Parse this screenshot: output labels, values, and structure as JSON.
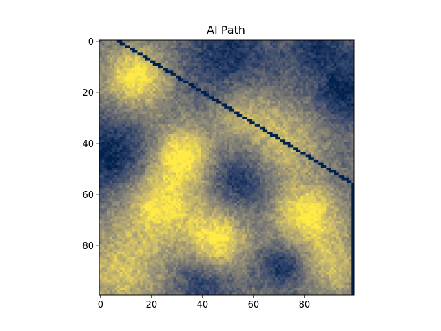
{
  "chart_data": {
    "type": "heatmap",
    "title": "AI Path",
    "xlabel": "",
    "ylabel": "",
    "grid_size": [
      100,
      100
    ],
    "xlim": [
      -0.5,
      99.5
    ],
    "ylim": [
      99.5,
      -0.5
    ],
    "y_axis_inverted": true,
    "x_ticks": [
      0,
      20,
      40,
      60,
      80
    ],
    "y_ticks": [
      0,
      20,
      40,
      60,
      80
    ],
    "x_tick_labels": [
      "0",
      "20",
      "40",
      "60",
      "80"
    ],
    "y_tick_labels": [
      "0",
      "20",
      "40",
      "60",
      "80"
    ],
    "colormap": "cividis",
    "color_stops": [
      "#00204d",
      "#31446b",
      "#666970",
      "#958f78",
      "#cbba69",
      "#ffea46"
    ],
    "grid": false,
    "legend": "none",
    "value_range": [
      0,
      1
    ],
    "path": {
      "description_value": 0,
      "waypoints": [
        [
          7,
          0
        ],
        [
          99,
          56
        ]
      ],
      "line_width_cells": 1
    },
    "hot_spots": [
      {
        "x": 14,
        "y": 14,
        "radius": 9,
        "peak": 1.0
      },
      {
        "x": 32,
        "y": 44,
        "radius": 8,
        "peak": 0.98
      },
      {
        "x": 24,
        "y": 64,
        "radius": 11,
        "peak": 0.97
      },
      {
        "x": 46,
        "y": 78,
        "radius": 8,
        "peak": 1.0
      },
      {
        "x": 81,
        "y": 68,
        "radius": 9,
        "peak": 1.0
      },
      {
        "x": 72,
        "y": 40,
        "radius": 10,
        "peak": 0.78
      },
      {
        "x": 55,
        "y": 27,
        "radius": 9,
        "peak": 0.75
      },
      {
        "x": 8,
        "y": 90,
        "radius": 12,
        "peak": 0.82
      },
      {
        "x": 92,
        "y": 88,
        "radius": 9,
        "peak": 0.78
      }
    ],
    "cold_spots": [
      {
        "x": 4,
        "y": 45,
        "radius": 11,
        "peak": 0.02
      },
      {
        "x": 50,
        "y": 8,
        "radius": 12,
        "peak": 0.08
      },
      {
        "x": 96,
        "y": 20,
        "radius": 8,
        "peak": 0.05
      },
      {
        "x": 55,
        "y": 54,
        "radius": 8,
        "peak": 0.1
      },
      {
        "x": 40,
        "y": 96,
        "radius": 8,
        "peak": 0.15
      },
      {
        "x": 72,
        "y": 88,
        "radius": 6,
        "peak": 0.08
      },
      {
        "x": 86,
        "y": 2,
        "radius": 9,
        "peak": 0.12
      }
    ]
  }
}
